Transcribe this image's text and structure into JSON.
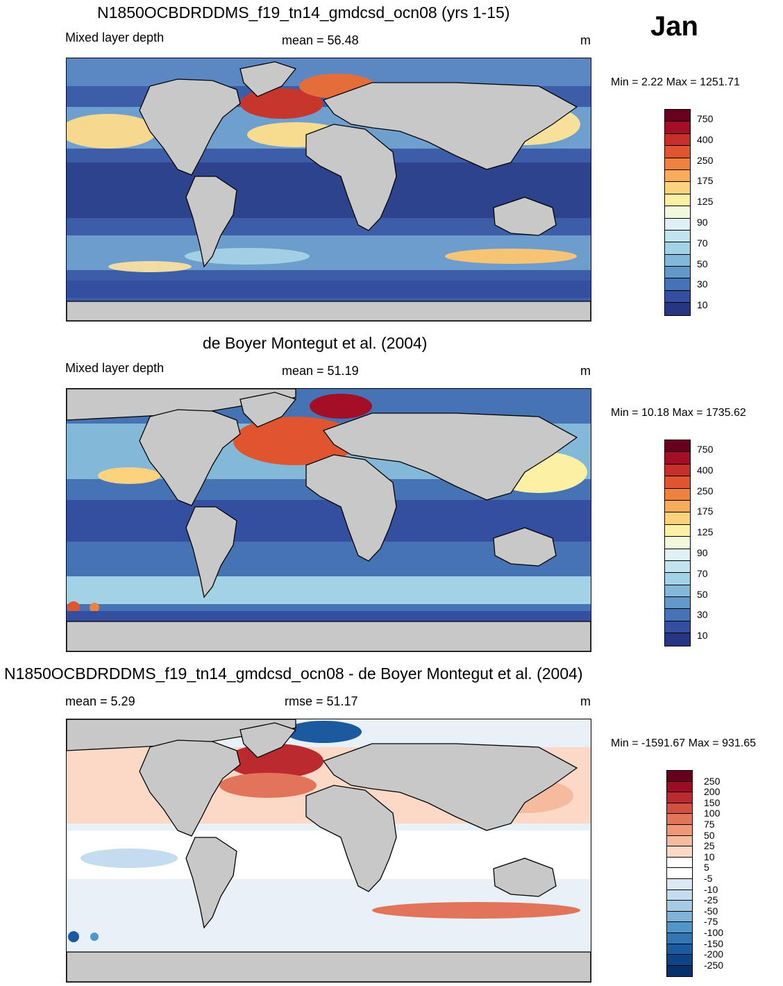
{
  "month": "Jan",
  "panels": [
    {
      "title": "N1850OCBDRDDMS_f19_tn14_gmdcsd_ocn08 (yrs 1-15)",
      "left_label": "Mixed layer depth",
      "center_label": "mean =  56.48",
      "units": "m",
      "minmax": "Min =   2.22 Max = 1251.71"
    },
    {
      "title": "de Boyer Montegut et al. (2004)",
      "left_label": "Mixed layer depth",
      "center_label": "mean =  51.19",
      "units": "m",
      "minmax": "Min =  10.18 Max = 1735.62"
    },
    {
      "title": "N1850OCBDRDDMS_f19_tn14_gmdcsd_ocn08 - de Boyer Montegut et al. (2004)",
      "left_label": "mean =   5.29",
      "center_label": "rmse =  51.17",
      "units": "m",
      "minmax": "Min = -1591.67 Max = 931.65"
    }
  ],
  "colorbar_mld": {
    "colors": [
      "#67001f",
      "#a50f26",
      "#c62f2a",
      "#e0552f",
      "#f0823f",
      "#f9ab5c",
      "#fdd27e",
      "#fbf0a4",
      "#f2f8dc",
      "#dff1f4",
      "#c2e4ef",
      "#a3d1e5",
      "#83b8d9",
      "#6399c8",
      "#4673b4",
      "#344fa0",
      "#283581"
    ],
    "labels": [
      "750",
      "400",
      "250",
      "175",
      "125",
      "90",
      "70",
      "50",
      "30",
      "10"
    ]
  },
  "colorbar_diff": {
    "colors": [
      "#67001f",
      "#9b0d23",
      "#bb2a2e",
      "#d1503f",
      "#e27559",
      "#ee9877",
      "#f6bb9f",
      "#fbd9c6",
      "#ffffff",
      "#ffffff",
      "#dbe9f4",
      "#c3dcee",
      "#a6cbe5",
      "#80b3da",
      "#5495c9",
      "#3276b5",
      "#1c5aa0",
      "#0e4387",
      "#08306b"
    ],
    "labels": [
      "250",
      "200",
      "150",
      "100",
      "75",
      "50",
      "25",
      "10",
      "5",
      "-5",
      "-10",
      "-25",
      "-50",
      "-75",
      "-100",
      "-150",
      "-200",
      "-250"
    ]
  }
}
